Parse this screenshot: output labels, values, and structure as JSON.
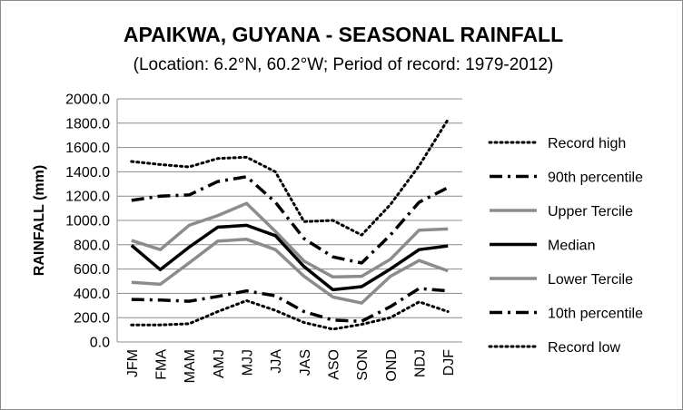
{
  "chart_data": {
    "type": "line",
    "title": "APAIKWA, GUYANA - SEASONAL RAINFALL",
    "subtitle": "(Location: 6.2°N, 60.2°W; Period of record: 1979-2012)",
    "xlabel": "",
    "ylabel": "RAINFALL (mm)",
    "ylim": [
      0,
      2000
    ],
    "y_ticks": [
      "0.0",
      "200.0",
      "400.0",
      "600.0",
      "800.0",
      "1000.0",
      "1200.0",
      "1400.0",
      "1600.0",
      "1800.0",
      "2000.0"
    ],
    "grid": true,
    "legend_position": "right",
    "categories": [
      "JFM",
      "FMA",
      "MAM",
      "AMJ",
      "MJJ",
      "JJA",
      "JAS",
      "ASO",
      "SON",
      "OND",
      "NDJ",
      "DJF"
    ],
    "series": [
      {
        "name": "Record high",
        "style": "dotted",
        "color": "#000000",
        "values": [
          1485,
          1460,
          1440,
          1510,
          1520,
          1400,
          990,
          1000,
          880,
          1130,
          1450,
          1830
        ]
      },
      {
        "name": "90th percentile",
        "style": "dashdot",
        "color": "#000000",
        "values": [
          1165,
          1200,
          1210,
          1320,
          1360,
          1150,
          850,
          700,
          650,
          880,
          1150,
          1270
        ]
      },
      {
        "name": "Upper Tercile",
        "style": "solid",
        "color": "#8c8c8c",
        "values": [
          835,
          760,
          960,
          1040,
          1140,
          910,
          665,
          535,
          540,
          680,
          920,
          930
        ]
      },
      {
        "name": "Median",
        "style": "solid",
        "color": "#000000",
        "values": [
          795,
          595,
          780,
          945,
          960,
          875,
          620,
          430,
          455,
          600,
          760,
          790
        ]
      },
      {
        "name": "Lower Tercile",
        "style": "solid",
        "color": "#8c8c8c",
        "values": [
          490,
          475,
          650,
          830,
          845,
          760,
          540,
          370,
          320,
          540,
          670,
          585
        ]
      },
      {
        "name": "10th percentile",
        "style": "dashdot",
        "color": "#000000",
        "values": [
          350,
          345,
          335,
          375,
          420,
          380,
          250,
          180,
          170,
          290,
          440,
          420
        ]
      },
      {
        "name": "Record low",
        "style": "dotted",
        "color": "#000000",
        "values": [
          140,
          140,
          150,
          250,
          340,
          260,
          160,
          105,
          145,
          200,
          330,
          250
        ]
      }
    ]
  }
}
